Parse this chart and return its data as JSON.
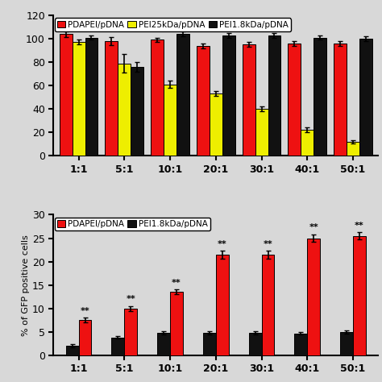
{
  "top_chart": {
    "categories": [
      "1:1",
      "5:1",
      "10:1",
      "20:1",
      "30:1",
      "40:1",
      "50:1"
    ],
    "series": [
      {
        "label": "PDAPEl/pDNA",
        "color": "#EE1111",
        "values": [
          104,
          98,
          99,
          94,
          95,
          96,
          96
        ],
        "errors": [
          2.5,
          3.5,
          2,
          2,
          2,
          2,
          2
        ]
      },
      {
        "label": "PEl25kDa/pDNA",
        "color": "#EEEE00",
        "values": [
          97,
          79,
          61,
          53,
          40,
          22,
          12
        ],
        "errors": [
          2,
          8,
          3,
          2,
          2,
          2,
          1.5
        ]
      },
      {
        "label": "PEl1.8kDa/pDNA",
        "color": "#111111",
        "values": [
          101,
          76,
          104,
          103,
          103,
          101,
          100
        ],
        "errors": [
          2,
          4,
          2,
          2,
          2,
          2,
          2
        ]
      }
    ],
    "ylim": [
      0,
      120
    ],
    "yticks": [
      0,
      20,
      40,
      60,
      80,
      100,
      120
    ],
    "legend_labels": [
      "PDAPEl/pDNA",
      "PEl25kDa/pDNA",
      "PEl1.8kDa/pDNA"
    ],
    "legend_colors": [
      "#EE1111",
      "#EEEE00",
      "#111111"
    ]
  },
  "bottom_chart": {
    "categories": [
      "1:1",
      "5:1",
      "10:1",
      "20:1",
      "30:1",
      "40:1",
      "50:1"
    ],
    "series": [
      {
        "label": "PEl1.8kDa/pDNA",
        "color": "#111111",
        "values": [
          2.0,
          3.8,
          4.8,
          4.8,
          4.8,
          4.7,
          5.0
        ],
        "errors": [
          0.3,
          0.3,
          0.3,
          0.3,
          0.3,
          0.3,
          0.3
        ]
      },
      {
        "label": "PDAPEl/pDNA",
        "color": "#EE1111",
        "values": [
          7.5,
          10,
          13.5,
          21.5,
          21.5,
          25,
          25.5
        ],
        "errors": [
          0.5,
          0.5,
          0.5,
          0.8,
          0.8,
          0.8,
          0.8
        ],
        "sig": [
          "**",
          "**",
          "**",
          "**",
          "**",
          "**",
          "**"
        ]
      }
    ],
    "ylim": [
      0,
      30
    ],
    "yticks": [
      0,
      5,
      10,
      15,
      20,
      25,
      30
    ],
    "ylabel": "% of GFP positive cells",
    "legend_labels": [
      "PDAPEl/pDNA",
      "PEl1.8kDa/pDNA"
    ],
    "legend_colors": [
      "#EE1111",
      "#111111"
    ]
  },
  "bar_width": 0.28,
  "figure_bg": "#D8D8D8"
}
